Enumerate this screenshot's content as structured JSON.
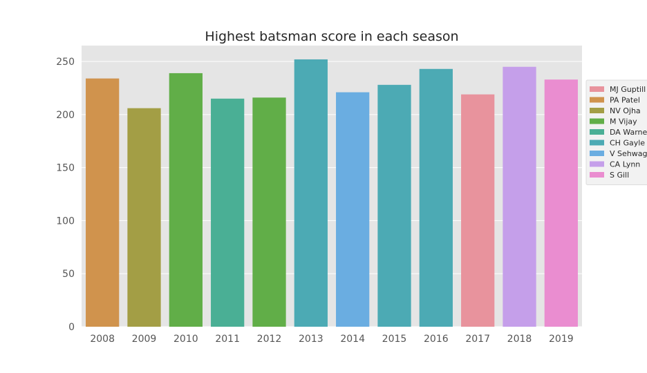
{
  "chart_data": {
    "type": "bar",
    "title": "Highest batsman score in each season",
    "xlabel": "",
    "ylabel": "",
    "ylim": [
      0,
      265
    ],
    "yticks": [
      0,
      50,
      100,
      150,
      200,
      250
    ],
    "grid": true,
    "legend_position": "right",
    "categories": [
      "2008",
      "2009",
      "2010",
      "2011",
      "2012",
      "2013",
      "2014",
      "2015",
      "2016",
      "2017",
      "2018",
      "2019"
    ],
    "values": [
      234,
      206,
      239,
      215,
      216,
      252,
      221,
      228,
      243,
      219,
      245,
      233
    ],
    "batsmen": [
      "PA Patel",
      "NV Ojha",
      "M Vijay",
      "DA Warner",
      "M Vijay",
      "CH Gayle",
      "V Sehwag",
      "CH Gayle",
      "CH Gayle",
      "MJ Guptill",
      "CA Lynn",
      "S Gill"
    ],
    "legend": [
      {
        "label": "MJ Guptill",
        "color": "#e8939d"
      },
      {
        "label": "PA Patel",
        "color": "#d0934d"
      },
      {
        "label": "NV Ojha",
        "color": "#a39e45"
      },
      {
        "label": "M Vijay",
        "color": "#61ae48"
      },
      {
        "label": "DA Warner",
        "color": "#4aaf95"
      },
      {
        "label": "CH Gayle",
        "color": "#4caab4"
      },
      {
        "label": "V Sehwag",
        "color": "#6aade1"
      },
      {
        "label": "CA Lynn",
        "color": "#c59fea"
      },
      {
        "label": "S Gill",
        "color": "#ea8dd0"
      }
    ]
  }
}
